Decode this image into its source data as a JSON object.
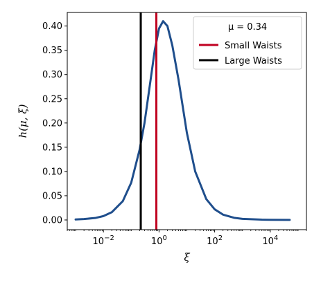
{
  "chart_data": {
    "type": "line",
    "xscale": "log",
    "xlabel": "ξ",
    "ylabel": "h(μ, ξ)",
    "xlim": [
      0.0005,
      200000
    ],
    "ylim": [
      -0.02,
      0.428
    ],
    "xticks": [
      {
        "value": 0.01,
        "base": "10",
        "exp": "−2"
      },
      {
        "value": 1,
        "base": "10",
        "exp": "0"
      },
      {
        "value": 100,
        "base": "10",
        "exp": "2"
      },
      {
        "value": 10000,
        "base": "10",
        "exp": "4"
      }
    ],
    "yticks": [
      "0.00",
      "0.05",
      "0.10",
      "0.15",
      "0.20",
      "0.25",
      "0.30",
      "0.35",
      "0.40"
    ],
    "legend": {
      "title": "μ = 0.34",
      "position": "upper right",
      "entries": [
        {
          "label": "Small Waists",
          "color": "#c00020"
        },
        {
          "label": "Large Waists",
          "color": "#000000"
        }
      ]
    },
    "vlines": [
      {
        "name": "Small Waists",
        "x": 0.8,
        "color": "#c00020"
      },
      {
        "name": "Large Waists",
        "x": 0.22,
        "color": "#000000"
      }
    ],
    "series": [
      {
        "color": "#1f4e8c",
        "x": [
          0.001,
          0.002,
          0.005,
          0.01,
          0.02,
          0.05,
          0.1,
          0.2,
          0.3,
          0.5,
          0.7,
          1.0,
          1.4,
          2.0,
          3.0,
          5.0,
          10,
          20,
          50,
          100,
          200,
          500,
          1000,
          5000,
          10000,
          50000
        ],
        "y": [
          0.001,
          0.002,
          0.004,
          0.008,
          0.016,
          0.039,
          0.077,
          0.145,
          0.2,
          0.29,
          0.35,
          0.395,
          0.41,
          0.4,
          0.36,
          0.29,
          0.18,
          0.1,
          0.043,
          0.022,
          0.011,
          0.0045,
          0.0023,
          0.0006,
          0.0003,
          0.0001
        ]
      }
    ]
  }
}
